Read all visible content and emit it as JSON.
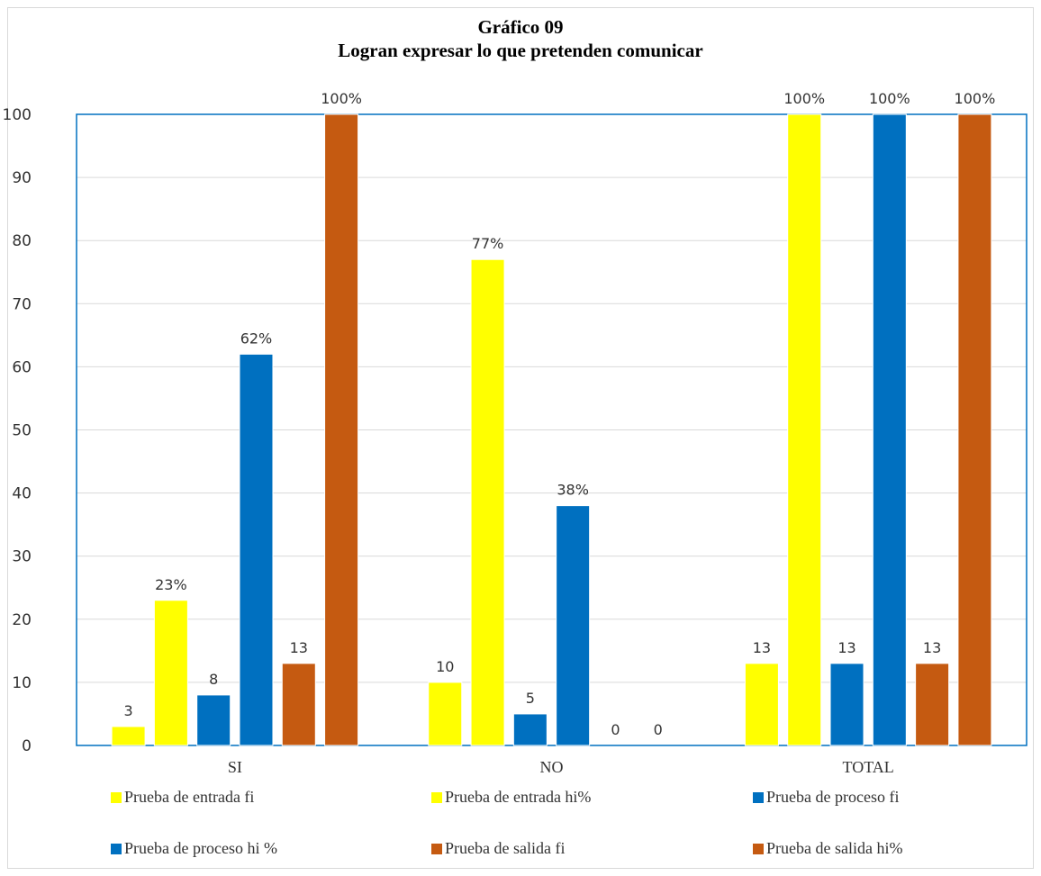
{
  "chart_data": {
    "type": "bar",
    "title": "Gráfico 09",
    "subtitle": "Logran expresar lo que pretenden comunicar",
    "categories": [
      "SI",
      "NO",
      "TOTAL"
    ],
    "ylim": [
      0,
      100
    ],
    "yticks": [
      "0",
      "10",
      "20",
      "30",
      "40",
      "50",
      "60",
      "70",
      "80",
      "90",
      "100"
    ],
    "grid": true,
    "legend_position": "bottom",
    "series": [
      {
        "name": "Prueba de entrada fi",
        "color": "#FFFF00",
        "values": [
          3,
          10,
          13
        ],
        "labels": [
          "3",
          "10",
          "13"
        ]
      },
      {
        "name": "Prueba de entrada hi%",
        "color": "#FFFF00",
        "values": [
          23,
          77,
          100
        ],
        "labels": [
          "23%",
          "77%",
          "100%"
        ]
      },
      {
        "name": "Prueba de proceso fi",
        "color": "#0070C0",
        "values": [
          8,
          5,
          13
        ],
        "labels": [
          "8",
          "5",
          "13"
        ]
      },
      {
        "name": "Prueba de proceso hi %",
        "color": "#0070C0",
        "values": [
          62,
          38,
          100
        ],
        "labels": [
          "62%",
          "38%",
          "100%"
        ]
      },
      {
        "name": "Prueba de salida fi",
        "color": "#C55A11",
        "values": [
          13,
          0,
          13
        ],
        "labels": [
          "13",
          "0",
          "13"
        ]
      },
      {
        "name": "Prueba de salida hi%",
        "color": "#C55A11",
        "values": [
          100,
          0,
          100
        ],
        "labels": [
          "100%",
          "0",
          "100%"
        ]
      }
    ]
  }
}
